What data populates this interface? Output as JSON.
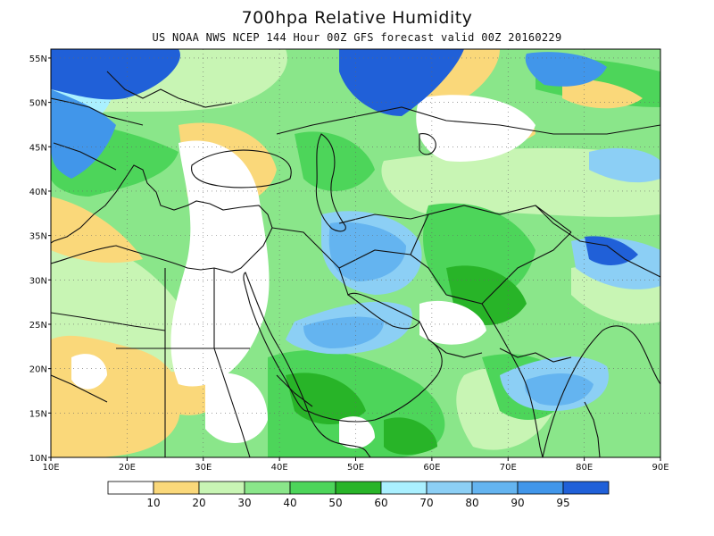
{
  "title": "700hpa Relative Humidity",
  "subtitle": "US NOAA NWS NCEP 144 Hour 00Z GFS forecast valid 00Z 20160229",
  "map": {
    "lon_range": [
      10,
      90
    ],
    "lat_range": [
      10,
      56
    ],
    "lon_ticks": [
      "10E",
      "20E",
      "30E",
      "40E",
      "50E",
      "60E",
      "70E",
      "80E",
      "90E"
    ],
    "lat_ticks": [
      "55N",
      "50N",
      "45N",
      "40N",
      "35N",
      "30N",
      "25N",
      "20N",
      "15N",
      "10N"
    ],
    "grid": "dotted",
    "coastlines": true
  },
  "colorbar": {
    "labels": [
      "10",
      "20",
      "30",
      "40",
      "50",
      "60",
      "70",
      "80",
      "90",
      "95"
    ],
    "colors": [
      "#ffffff",
      "#fad87a",
      "#c8f5b4",
      "#8ae68a",
      "#4dd55a",
      "#28b428",
      "#aaf0ff",
      "#8ccff5",
      "#64b4f0",
      "#4196ea",
      "#2060d8"
    ]
  }
}
